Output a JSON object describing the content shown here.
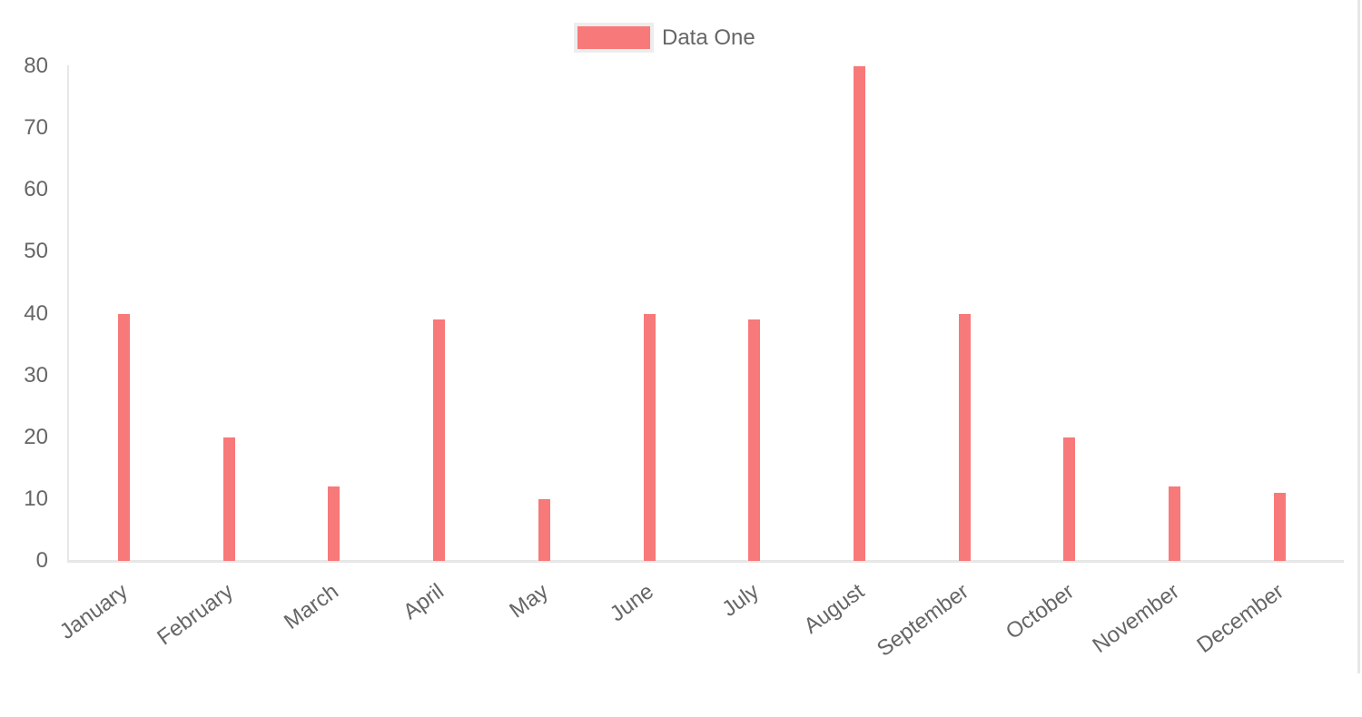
{
  "chart_data": {
    "type": "bar",
    "title": "",
    "xlabel": "",
    "ylabel": "",
    "categories": [
      "January",
      "February",
      "March",
      "April",
      "May",
      "June",
      "July",
      "August",
      "September",
      "October",
      "November",
      "December"
    ],
    "series": [
      {
        "name": "Data One",
        "color": "#f87979",
        "values": [
          40,
          20,
          12,
          39,
          10,
          40,
          39,
          80,
          40,
          20,
          12,
          11
        ]
      }
    ],
    "ylim": [
      0,
      80
    ],
    "yticks": [
      0,
      10,
      20,
      30,
      40,
      50,
      60,
      70,
      80
    ],
    "grid": false,
    "legend_position": "top",
    "x_tick_rotation_deg": -36
  },
  "colors": {
    "bar": "#f87979",
    "legend_swatch_border": "#ededed",
    "axis_line": "#e7e7e7",
    "tick_text": "#666666",
    "background": "#ffffff"
  }
}
